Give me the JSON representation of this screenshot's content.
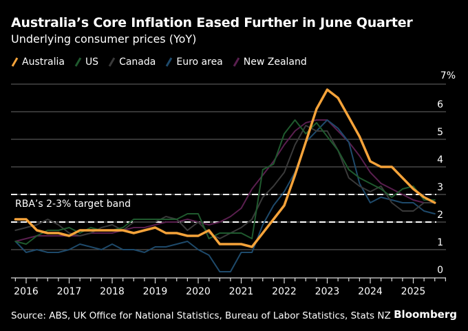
{
  "header": {
    "title": "Australia’s Core Inflation Eased Further in June Quarter",
    "subtitle": "Underlying consumer prices (YoY)"
  },
  "footer": {
    "source": "Source: ABS, UK Office for National Statistics, Bureau of Labor Statistics, Stats NZ",
    "brand": "Bloomberg"
  },
  "chart_data": {
    "type": "line",
    "title": "Australia’s Core Inflation Eased Further in June Quarter",
    "subtitle": "Underlying consumer prices (YoY)",
    "xlabel": "",
    "ylabel": "",
    "ylim": [
      0,
      7
    ],
    "xlim": [
      2015.7,
      2025.8
    ],
    "y_ticks": [
      "0",
      "1",
      "2",
      "3",
      "4",
      "5",
      "6",
      "7%"
    ],
    "x_ticks": [
      "2016",
      "2017",
      "2018",
      "2019",
      "2020",
      "2021",
      "2022",
      "2023",
      "2024",
      "2025"
    ],
    "grid": true,
    "legend_position": "top-left",
    "annotation": {
      "label": "RBA’s 2-3% target band",
      "band": [
        2,
        3
      ]
    },
    "x_start": 2015.75,
    "x_step": 0.25,
    "series": [
      {
        "name": "Australia",
        "color": "#f5a33a",
        "values": [
          2.1,
          2.1,
          1.7,
          1.6,
          1.6,
          1.5,
          1.7,
          1.7,
          1.7,
          1.7,
          1.7,
          1.6,
          1.7,
          1.8,
          1.6,
          1.6,
          1.5,
          1.5,
          1.7,
          1.2,
          1.2,
          1.2,
          1.1,
          1.6,
          2.1,
          2.6,
          3.7,
          4.9,
          6.1,
          6.8,
          6.5,
          5.8,
          5.1,
          4.2,
          4.0,
          4.0,
          3.6,
          3.2,
          2.9,
          2.7
        ]
      },
      {
        "name": "US",
        "color": "#1f5a2e",
        "values": [
          1.3,
          1.2,
          1.5,
          1.7,
          1.7,
          1.8,
          1.6,
          1.8,
          1.7,
          1.7,
          1.8,
          2.1,
          2.1,
          2.1,
          2.1,
          2.1,
          2.3,
          2.3,
          1.4,
          1.6,
          1.6,
          1.6,
          1.4,
          3.9,
          4.1,
          5.2,
          5.7,
          5.2,
          5.6,
          5.1,
          4.6,
          3.9,
          3.6,
          3.4,
          3.2,
          2.9,
          3.2,
          3.3,
          2.8,
          2.8
        ]
      },
      {
        "name": "Canada",
        "color": "#3a3a3a",
        "values": [
          1.7,
          1.8,
          1.9,
          2.1,
          1.9,
          1.6,
          1.5,
          1.6,
          1.8,
          1.9,
          1.7,
          2.0,
          2.0,
          2.0,
          2.2,
          2.1,
          1.7,
          2.0,
          1.6,
          1.4,
          1.6,
          1.8,
          2.1,
          2.9,
          3.3,
          3.8,
          4.8,
          5.5,
          5.3,
          5.3,
          4.6,
          3.6,
          3.3,
          3.1,
          3.3,
          2.7,
          2.4,
          2.4,
          2.7,
          2.7
        ]
      },
      {
        "name": "Euro area",
        "color": "#1e4a6b",
        "values": [
          1.3,
          0.9,
          1.0,
          0.9,
          0.9,
          1.0,
          1.2,
          1.1,
          1.0,
          1.2,
          1.0,
          1.0,
          0.9,
          1.1,
          1.1,
          1.2,
          1.3,
          1.0,
          0.8,
          0.2,
          0.2,
          0.9,
          0.9,
          1.9,
          2.6,
          3.1,
          3.8,
          4.9,
          5.3,
          5.7,
          5.4,
          4.9,
          3.4,
          2.7,
          2.9,
          2.8,
          2.7,
          2.7,
          2.4,
          2.3
        ]
      },
      {
        "name": "New Zealand",
        "color": "#5a1f4f",
        "values": [
          1.3,
          1.4,
          1.5,
          1.5,
          1.5,
          1.5,
          1.5,
          1.6,
          1.6,
          1.6,
          1.7,
          1.8,
          1.8,
          1.9,
          2.0,
          2.0,
          2.1,
          2.0,
          1.9,
          2.0,
          2.2,
          2.5,
          3.2,
          3.7,
          4.2,
          4.8,
          5.3,
          5.6,
          5.7,
          5.7,
          5.3,
          4.9,
          4.4,
          3.8,
          3.4,
          3.2,
          3.0,
          2.8,
          2.7,
          2.7
        ]
      }
    ]
  }
}
